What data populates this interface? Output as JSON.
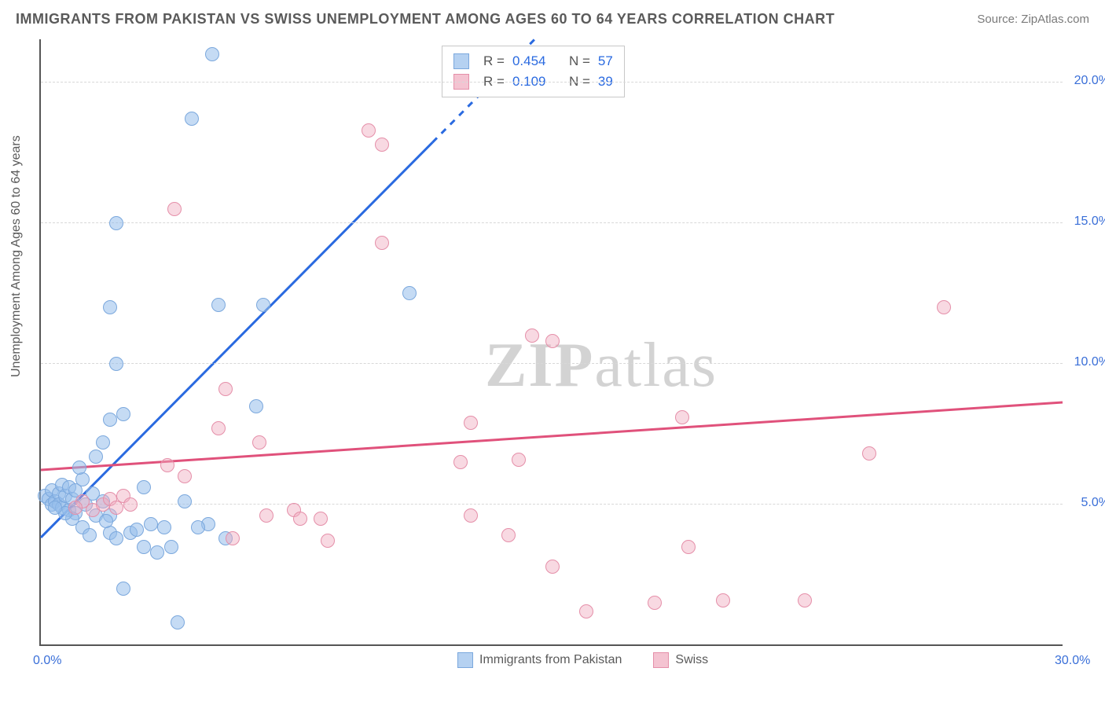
{
  "title": "IMMIGRANTS FROM PAKISTAN VS SWISS UNEMPLOYMENT AMONG AGES 60 TO 64 YEARS CORRELATION CHART",
  "source_prefix": "Source: ",
  "source_name": "ZipAtlas.com",
  "ylabel": "Unemployment Among Ages 60 to 64 years",
  "watermark_a": "ZIP",
  "watermark_b": "atlas",
  "chart": {
    "type": "scatter",
    "xlim": [
      0,
      30
    ],
    "ylim": [
      0,
      21.5
    ],
    "yticks": [
      {
        "v": 5,
        "label": "5.0%"
      },
      {
        "v": 10,
        "label": "10.0%"
      },
      {
        "v": 15,
        "label": "15.0%"
      },
      {
        "v": 20,
        "label": "20.0%"
      }
    ],
    "xticks": [
      {
        "v": 0,
        "label": "0.0%"
      },
      {
        "v": 30,
        "label": "30.0%"
      }
    ],
    "series": {
      "blue": {
        "label": "Immigrants from Pakistan",
        "color": "#2a6ae0",
        "marker_fill": "rgba(150,190,235,0.55)",
        "marker_stroke": "#7ba8dd",
        "R": "0.454",
        "N": "57",
        "trend": {
          "x1": 0,
          "y1": 3.8,
          "x2": 14.5,
          "y2": 21.5,
          "dash_from_x": 11.5
        },
        "points": [
          [
            0.1,
            5.3
          ],
          [
            0.2,
            5.2
          ],
          [
            0.3,
            5.0
          ],
          [
            0.3,
            5.5
          ],
          [
            0.4,
            5.1
          ],
          [
            0.5,
            5.4
          ],
          [
            0.5,
            5.0
          ],
          [
            0.6,
            5.7
          ],
          [
            0.6,
            4.9
          ],
          [
            0.7,
            5.3
          ],
          [
            0.8,
            5.6
          ],
          [
            0.8,
            4.8
          ],
          [
            0.9,
            5.2
          ],
          [
            1.0,
            5.5
          ],
          [
            1.0,
            4.7
          ],
          [
            1.2,
            5.9
          ],
          [
            1.3,
            5.0
          ],
          [
            1.5,
            5.4
          ],
          [
            1.6,
            4.6
          ],
          [
            1.8,
            5.1
          ],
          [
            2.0,
            4.0
          ],
          [
            2.0,
            4.6
          ],
          [
            2.2,
            3.8
          ],
          [
            2.4,
            2.0
          ],
          [
            2.6,
            4.0
          ],
          [
            2.8,
            4.1
          ],
          [
            3.0,
            3.5
          ],
          [
            3.2,
            4.3
          ],
          [
            3.4,
            3.3
          ],
          [
            3.6,
            4.2
          ],
          [
            1.6,
            6.7
          ],
          [
            1.8,
            7.2
          ],
          [
            2.0,
            8.0
          ],
          [
            2.4,
            8.2
          ],
          [
            2.2,
            10.0
          ],
          [
            2.0,
            12.0
          ],
          [
            2.2,
            15.0
          ],
          [
            5.0,
            21.0
          ],
          [
            4.4,
            18.7
          ],
          [
            5.2,
            12.1
          ],
          [
            6.5,
            12.1
          ],
          [
            6.3,
            8.5
          ],
          [
            4.9,
            4.3
          ],
          [
            4.6,
            4.2
          ],
          [
            4.2,
            5.1
          ],
          [
            4.0,
            0.8
          ],
          [
            3.8,
            3.5
          ],
          [
            10.8,
            12.5
          ],
          [
            5.4,
            3.8
          ],
          [
            3.0,
            5.6
          ],
          [
            1.2,
            4.2
          ],
          [
            1.4,
            3.9
          ],
          [
            0.9,
            4.5
          ],
          [
            0.7,
            4.7
          ],
          [
            0.4,
            4.9
          ],
          [
            1.1,
            6.3
          ],
          [
            1.9,
            4.4
          ]
        ]
      },
      "pink": {
        "label": "Swiss",
        "color": "#e0517b",
        "marker_fill": "rgba(240,170,190,0.45)",
        "marker_stroke": "#e58fa9",
        "R": "0.109",
        "N": "39",
        "trend": {
          "x1": 0,
          "y1": 6.2,
          "x2": 30,
          "y2": 8.6
        },
        "points": [
          [
            1.5,
            4.8
          ],
          [
            1.8,
            5.0
          ],
          [
            2.0,
            5.2
          ],
          [
            2.2,
            4.9
          ],
          [
            2.4,
            5.3
          ],
          [
            2.6,
            5.0
          ],
          [
            3.9,
            15.5
          ],
          [
            3.7,
            6.4
          ],
          [
            4.2,
            6.0
          ],
          [
            5.2,
            7.7
          ],
          [
            5.4,
            9.1
          ],
          [
            5.6,
            3.8
          ],
          [
            6.4,
            7.2
          ],
          [
            6.6,
            4.6
          ],
          [
            7.4,
            4.8
          ],
          [
            7.6,
            4.5
          ],
          [
            8.2,
            4.5
          ],
          [
            8.4,
            3.7
          ],
          [
            9.6,
            18.3
          ],
          [
            10.0,
            17.8
          ],
          [
            10.0,
            14.3
          ],
          [
            12.6,
            7.9
          ],
          [
            12.3,
            6.5
          ],
          [
            12.6,
            4.6
          ],
          [
            13.7,
            3.9
          ],
          [
            14.0,
            6.6
          ],
          [
            14.4,
            11.0
          ],
          [
            15.0,
            10.8
          ],
          [
            15.0,
            2.8
          ],
          [
            16.0,
            1.2
          ],
          [
            18.0,
            1.5
          ],
          [
            18.8,
            8.1
          ],
          [
            19.0,
            3.5
          ],
          [
            20.0,
            1.6
          ],
          [
            22.4,
            1.6
          ],
          [
            24.3,
            6.8
          ],
          [
            26.5,
            12.0
          ],
          [
            1.2,
            5.1
          ],
          [
            1.0,
            4.9
          ]
        ]
      }
    }
  },
  "legend_top": {
    "R_label": "R =",
    "N_label": "N ="
  }
}
